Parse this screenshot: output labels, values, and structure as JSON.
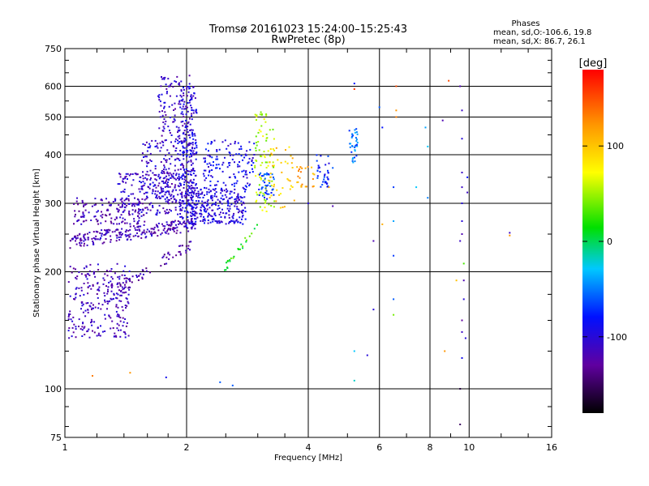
{
  "chart_data": {
    "type": "scatter",
    "title": "Tromsø 20161023 15:24:00–15:25:43",
    "subtitle": "RwPretec (8p)",
    "xlabel": "Frequency [MHz]",
    "ylabel": "Stationary phase Virtual Height [km]",
    "x_scale": "log",
    "y_scale": "log",
    "xlim": [
      1,
      16
    ],
    "ylim": [
      75,
      750
    ],
    "x_ticks": [
      1,
      2,
      4,
      6,
      8,
      10,
      16
    ],
    "y_ticks": [
      75,
      100,
      200,
      300,
      400,
      500,
      600,
      750
    ],
    "grid": true,
    "stats": {
      "heading": "Phases",
      "line1": "mean, sd,O:-106.6, 19.8",
      "line2": "mean, sd,X:  86.7, 26.1"
    },
    "colorbar": {
      "label": "[deg]",
      "ticks": [
        100,
        0,
        -100
      ],
      "range": [
        -180,
        180
      ]
    },
    "clusters": [
      {
        "kind": "box",
        "x": [
          1.02,
          1.45
        ],
        "y": [
          135,
          210
        ],
        "phase": -115,
        "n": 260
      },
      {
        "kind": "band",
        "x0": 1.03,
        "y0": 240,
        "x1": 2.1,
        "y1": 265,
        "phase": -118,
        "n": 230,
        "spread": 10
      },
      {
        "kind": "box",
        "x": [
          1.05,
          1.6
        ],
        "y": [
          265,
          310
        ],
        "phase": -118,
        "n": 140
      },
      {
        "kind": "box",
        "x": [
          1.35,
          1.95
        ],
        "y": [
          280,
          360
        ],
        "phase": -110,
        "n": 200
      },
      {
        "kind": "box",
        "x": [
          1.55,
          2.1
        ],
        "y": [
          300,
          440
        ],
        "phase": -105,
        "n": 200
      },
      {
        "kind": "box",
        "x": [
          1.7,
          2.08
        ],
        "y": [
          440,
          640
        ],
        "phase": -112,
        "n": 110
      },
      {
        "kind": "box",
        "x": [
          1.92,
          2.12
        ],
        "y": [
          260,
          600
        ],
        "phase": -100,
        "n": 220
      },
      {
        "kind": "box",
        "x": [
          2.05,
          2.8
        ],
        "y": [
          265,
          330
        ],
        "phase": -100,
        "n": 260
      },
      {
        "kind": "box",
        "x": [
          2.2,
          2.95
        ],
        "y": [
          330,
          440
        ],
        "phase": -92,
        "n": 130
      },
      {
        "kind": "band",
        "x0": 1.35,
        "y0": 180,
        "x1": 2.05,
        "y1": 235,
        "phase": -125,
        "n": 60,
        "spread": 8
      },
      {
        "kind": "box",
        "x": [
          2.95,
          3.3
        ],
        "y": [
          285,
          520
        ],
        "phase": 55,
        "n": 90
      },
      {
        "kind": "box",
        "x": [
          3.0,
          3.3
        ],
        "y": [
          305,
          360
        ],
        "phase": -70,
        "n": 40
      },
      {
        "kind": "box",
        "x": [
          3.2,
          3.7
        ],
        "y": [
          290,
          420
        ],
        "phase": 95,
        "n": 40
      },
      {
        "kind": "box",
        "x": [
          3.75,
          4.15
        ],
        "y": [
          330,
          375
        ],
        "phase": 115,
        "n": 25
      },
      {
        "kind": "box",
        "x": [
          4.15,
          4.5
        ],
        "y": [
          330,
          400
        ],
        "phase": -75,
        "n": 35
      },
      {
        "kind": "box",
        "x": [
          5.05,
          5.3
        ],
        "y": [
          380,
          470
        ],
        "phase": -55,
        "n": 35
      },
      {
        "kind": "band",
        "x0": 2.45,
        "y0": 200,
        "x1": 3.0,
        "y1": 265,
        "phase": 20,
        "n": 25,
        "spread": 5
      }
    ],
    "points": [
      [
        1.17,
        108,
        130
      ],
      [
        1.45,
        110,
        120
      ],
      [
        1.78,
        107,
        -90
      ],
      [
        2.42,
        104,
        -60
      ],
      [
        5.2,
        105,
        -20
      ],
      [
        5.2,
        125,
        -30
      ],
      [
        5.6,
        122,
        -100
      ],
      [
        5.8,
        160,
        -100
      ],
      [
        6.1,
        265,
        110
      ],
      [
        5.8,
        240,
        -120
      ],
      [
        6.5,
        170,
        -60
      ],
      [
        6.5,
        155,
        40
      ],
      [
        6.5,
        220,
        -70
      ],
      [
        6.5,
        270,
        -40
      ],
      [
        6.5,
        330,
        -70
      ],
      [
        7.4,
        330,
        -30
      ],
      [
        7.9,
        310,
        -50
      ],
      [
        6.6,
        500,
        130
      ],
      [
        7.8,
        470,
        -40
      ],
      [
        7.9,
        420,
        -30
      ],
      [
        6.1,
        470,
        -80
      ],
      [
        5.2,
        590,
        160
      ],
      [
        6.6,
        600,
        150
      ],
      [
        6.6,
        520,
        120
      ],
      [
        6.0,
        530,
        -60
      ],
      [
        5.2,
        610,
        -80
      ],
      [
        8.6,
        490,
        -120
      ],
      [
        8.9,
        620,
        150
      ],
      [
        9.5,
        600,
        -120
      ],
      [
        9.6,
        520,
        -110
      ],
      [
        9.6,
        440,
        -100
      ],
      [
        9.6,
        360,
        -110
      ],
      [
        9.6,
        330,
        -110
      ],
      [
        9.6,
        300,
        -100
      ],
      [
        9.6,
        270,
        -100
      ],
      [
        9.6,
        250,
        -120
      ],
      [
        9.7,
        210,
        30
      ],
      [
        9.7,
        190,
        -120
      ],
      [
        9.7,
        170,
        -100
      ],
      [
        9.6,
        150,
        -130
      ],
      [
        9.6,
        140,
        -110
      ],
      [
        9.8,
        135,
        -100
      ],
      [
        9.5,
        100,
        -160
      ],
      [
        9.5,
        81,
        -150
      ],
      [
        9.6,
        120,
        -90
      ],
      [
        8.7,
        125,
        120
      ],
      [
        9.9,
        350,
        -80
      ],
      [
        9.9,
        320,
        -110
      ],
      [
        9.3,
        190,
        100
      ],
      [
        9.5,
        240,
        -110
      ],
      [
        12.6,
        248,
        120
      ],
      [
        12.6,
        252,
        -110
      ],
      [
        4.5,
        380,
        -100
      ],
      [
        4.6,
        295,
        -120
      ],
      [
        4.5,
        330,
        110
      ],
      [
        4.0,
        300,
        -100
      ],
      [
        4.6,
        370,
        -60
      ],
      [
        2.6,
        102,
        -60
      ]
    ]
  }
}
